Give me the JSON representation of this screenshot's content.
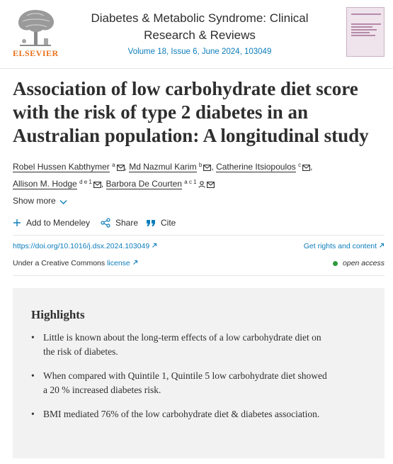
{
  "journal": {
    "publisher": "ELSEVIER",
    "title": "Diabetes & Metabolic Syndrome: Clinical Research & Reviews",
    "issue": "Volume 18, Issue 6, June 2024, 103049"
  },
  "article": {
    "title": "Association of low carbohydrate diet score with the risk of type 2 diabetes in an Australian population: A longitudinal study"
  },
  "authors": [
    {
      "name": "Robel Hussen Kabthymer",
      "sup": "a",
      "icons": [
        "mail-icon"
      ],
      "sep": ","
    },
    {
      "name": "Md Nazmul Karim",
      "sup": "b",
      "icons": [
        "mail-icon"
      ],
      "sep": ","
    },
    {
      "name": "Catherine Itsiopoulos",
      "sup": "c",
      "icons": [
        "mail-icon"
      ],
      "sep": ","
    },
    {
      "name": "Allison M. Hodge",
      "sup": "d e 1",
      "icons": [
        "mail-icon"
      ],
      "sep": ","
    },
    {
      "name": "Barbora De Courten",
      "sup": "a c 1",
      "icons": [
        "person-icon",
        "mail-icon"
      ],
      "sep": ""
    }
  ],
  "show_more": "Show more",
  "actions": {
    "mendeley": "Add to Mendeley",
    "share": "Share",
    "cite": "Cite"
  },
  "doi": "https://doi.org/10.1016/j.dsx.2024.103049",
  "rights": "Get rights and content",
  "license": {
    "prefix": "Under a Creative Commons",
    "link": "license",
    "open_access": "open access"
  },
  "highlights": {
    "title": "Highlights",
    "items": [
      "Little is known about the long-term effects of a low carbohydrate diet on the risk of diabetes.",
      "When compared with Quintile 1, Quintile 5 low carbohydrate diet showed a 20 % increased diabetes risk.",
      "BMI mediated 76% of the low carbohydrate diet & diabetes association."
    ]
  },
  "colors": {
    "link": "#0c7dbb",
    "elsevier_orange": "#e9711c",
    "open_access_green": "#2f9a3b",
    "highlights_bg": "#f2f2f2"
  }
}
